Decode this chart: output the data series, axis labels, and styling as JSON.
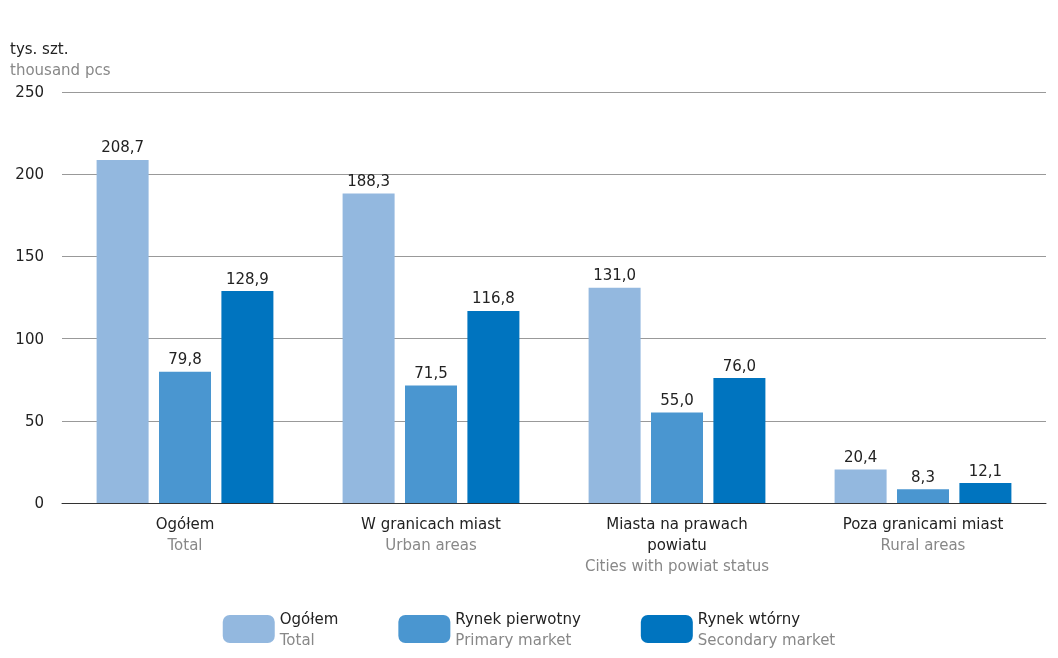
{
  "chart_data": {
    "type": "bar",
    "ylabel": "tys. szt.\nthousand pcs",
    "categories": [
      "Ogółem\nTotal",
      "W granicach miast\nUrban areas",
      "Miasta na prawach\npowiatu\nCities with powiat status",
      "Poza granicami miast\nRural areas"
    ],
    "series": [
      {
        "name": "Ogółem\nTotal",
        "color": "#93b8df",
        "values": [
          208.7,
          188.3,
          131.0,
          20.4
        ],
        "value_labels": [
          "208,7",
          "188,3",
          "131,0",
          "20,4"
        ]
      },
      {
        "name": "Rynek pierwotny\nPrimary market",
        "color": "#4a96d0",
        "values": [
          79.8,
          71.5,
          55.0,
          8.3
        ],
        "value_labels": [
          "79,8",
          "71,5",
          "55,0",
          "8,3"
        ]
      },
      {
        "name": "Rynek wtórny\nSecondary market",
        "color": "#0074bf",
        "values": [
          128.9,
          116.8,
          76.0,
          12.1
        ],
        "value_labels": [
          "128,9",
          "116,8",
          "76,0",
          "12,1"
        ]
      }
    ],
    "ylim": [
      0,
      250
    ],
    "yticks": [
      0,
      50,
      100,
      150,
      200,
      250
    ],
    "grid": "y",
    "legend": "bottom"
  }
}
